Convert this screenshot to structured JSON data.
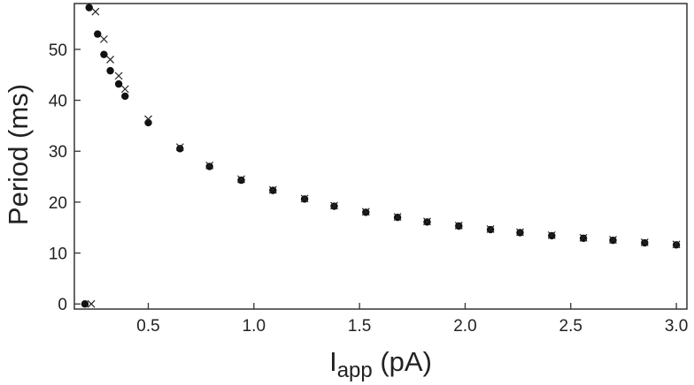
{
  "chart_data": {
    "type": "scatter",
    "xlabel": {
      "main": "I",
      "sub": "app",
      "unit": " (pA)"
    },
    "ylabel": "Period (ms)",
    "xlim": [
      0.15,
      3.05
    ],
    "ylim": [
      -1,
      59
    ],
    "xticks": [
      {
        "value": 0.5,
        "label": "0.5"
      },
      {
        "value": 1.0,
        "label": "1.0"
      },
      {
        "value": 1.5,
        "label": "1.5"
      },
      {
        "value": 2.0,
        "label": "2.0"
      },
      {
        "value": 2.5,
        "label": "2.5"
      },
      {
        "value": 3.0,
        "label": "3.0"
      }
    ],
    "yticks": [
      {
        "value": 0,
        "label": "0"
      },
      {
        "value": 10,
        "label": "10"
      },
      {
        "value": 20,
        "label": "20"
      },
      {
        "value": 30,
        "label": "30"
      },
      {
        "value": 40,
        "label": "40"
      },
      {
        "value": 50,
        "label": "50"
      }
    ],
    "grid": false,
    "series": [
      {
        "marker": "circle",
        "color": "#111111",
        "points": [
          [
            0.2,
            0.0
          ],
          [
            0.22,
            58.2
          ],
          [
            0.26,
            53.0
          ],
          [
            0.29,
            49.0
          ],
          [
            0.32,
            45.8
          ],
          [
            0.36,
            43.2
          ],
          [
            0.39,
            40.8
          ],
          [
            0.5,
            35.6
          ],
          [
            0.65,
            30.5
          ],
          [
            0.79,
            27.0
          ],
          [
            0.94,
            24.3
          ],
          [
            1.09,
            22.3
          ],
          [
            1.24,
            20.6
          ],
          [
            1.38,
            19.2
          ],
          [
            1.53,
            18.0
          ],
          [
            1.68,
            17.0
          ],
          [
            1.82,
            16.1
          ],
          [
            1.97,
            15.3
          ],
          [
            2.12,
            14.6
          ],
          [
            2.26,
            14.0
          ],
          [
            2.41,
            13.4
          ],
          [
            2.56,
            12.9
          ],
          [
            2.7,
            12.5
          ],
          [
            2.85,
            12.0
          ],
          [
            3.0,
            11.6
          ]
        ]
      },
      {
        "marker": "cross",
        "color": "#222222",
        "points": [
          [
            0.23,
            0.0
          ],
          [
            0.25,
            57.4
          ],
          [
            0.29,
            52.0
          ],
          [
            0.32,
            48.0
          ],
          [
            0.36,
            44.8
          ],
          [
            0.39,
            42.2
          ],
          [
            0.5,
            36.3
          ],
          [
            0.65,
            30.8
          ],
          [
            0.79,
            27.2
          ],
          [
            0.94,
            24.5
          ],
          [
            1.09,
            22.4
          ],
          [
            1.24,
            20.7
          ],
          [
            1.38,
            19.3
          ],
          [
            1.53,
            18.1
          ],
          [
            1.68,
            17.1
          ],
          [
            1.82,
            16.2
          ],
          [
            1.97,
            15.4
          ],
          [
            2.12,
            14.7
          ],
          [
            2.26,
            14.1
          ],
          [
            2.41,
            13.5
          ],
          [
            2.56,
            13.0
          ],
          [
            2.7,
            12.6
          ],
          [
            2.85,
            12.1
          ],
          [
            3.0,
            11.7
          ]
        ]
      }
    ]
  }
}
